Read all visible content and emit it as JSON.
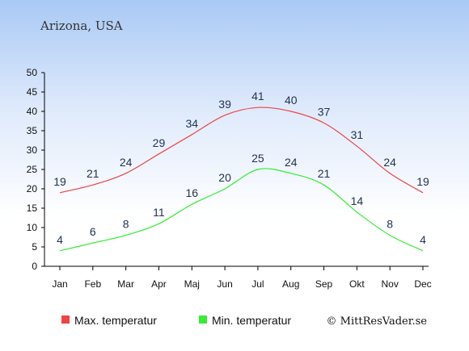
{
  "place": "Arizona, USA",
  "credit": "© MittResVader.se",
  "chart_data": {
    "type": "line",
    "categories": [
      "Jan",
      "Feb",
      "Mar",
      "Apr",
      "Maj",
      "Jun",
      "Jul",
      "Aug",
      "Sep",
      "Okt",
      "Nov",
      "Dec"
    ],
    "ylim": [
      0,
      50
    ],
    "yticks": [
      0,
      5,
      10,
      15,
      20,
      25,
      30,
      35,
      40,
      45,
      50
    ],
    "grid": false,
    "legend_position": "bottom",
    "series": [
      {
        "name": "Max. temperatur",
        "color": "#ee4444",
        "values": [
          19,
          21,
          24,
          29,
          34,
          39,
          41,
          40,
          37,
          31,
          24,
          19
        ]
      },
      {
        "name": "Min. temperatur",
        "color": "#33ee33",
        "values": [
          4,
          6,
          8,
          11,
          16,
          20,
          25,
          24,
          21,
          14,
          8,
          4
        ]
      }
    ]
  }
}
